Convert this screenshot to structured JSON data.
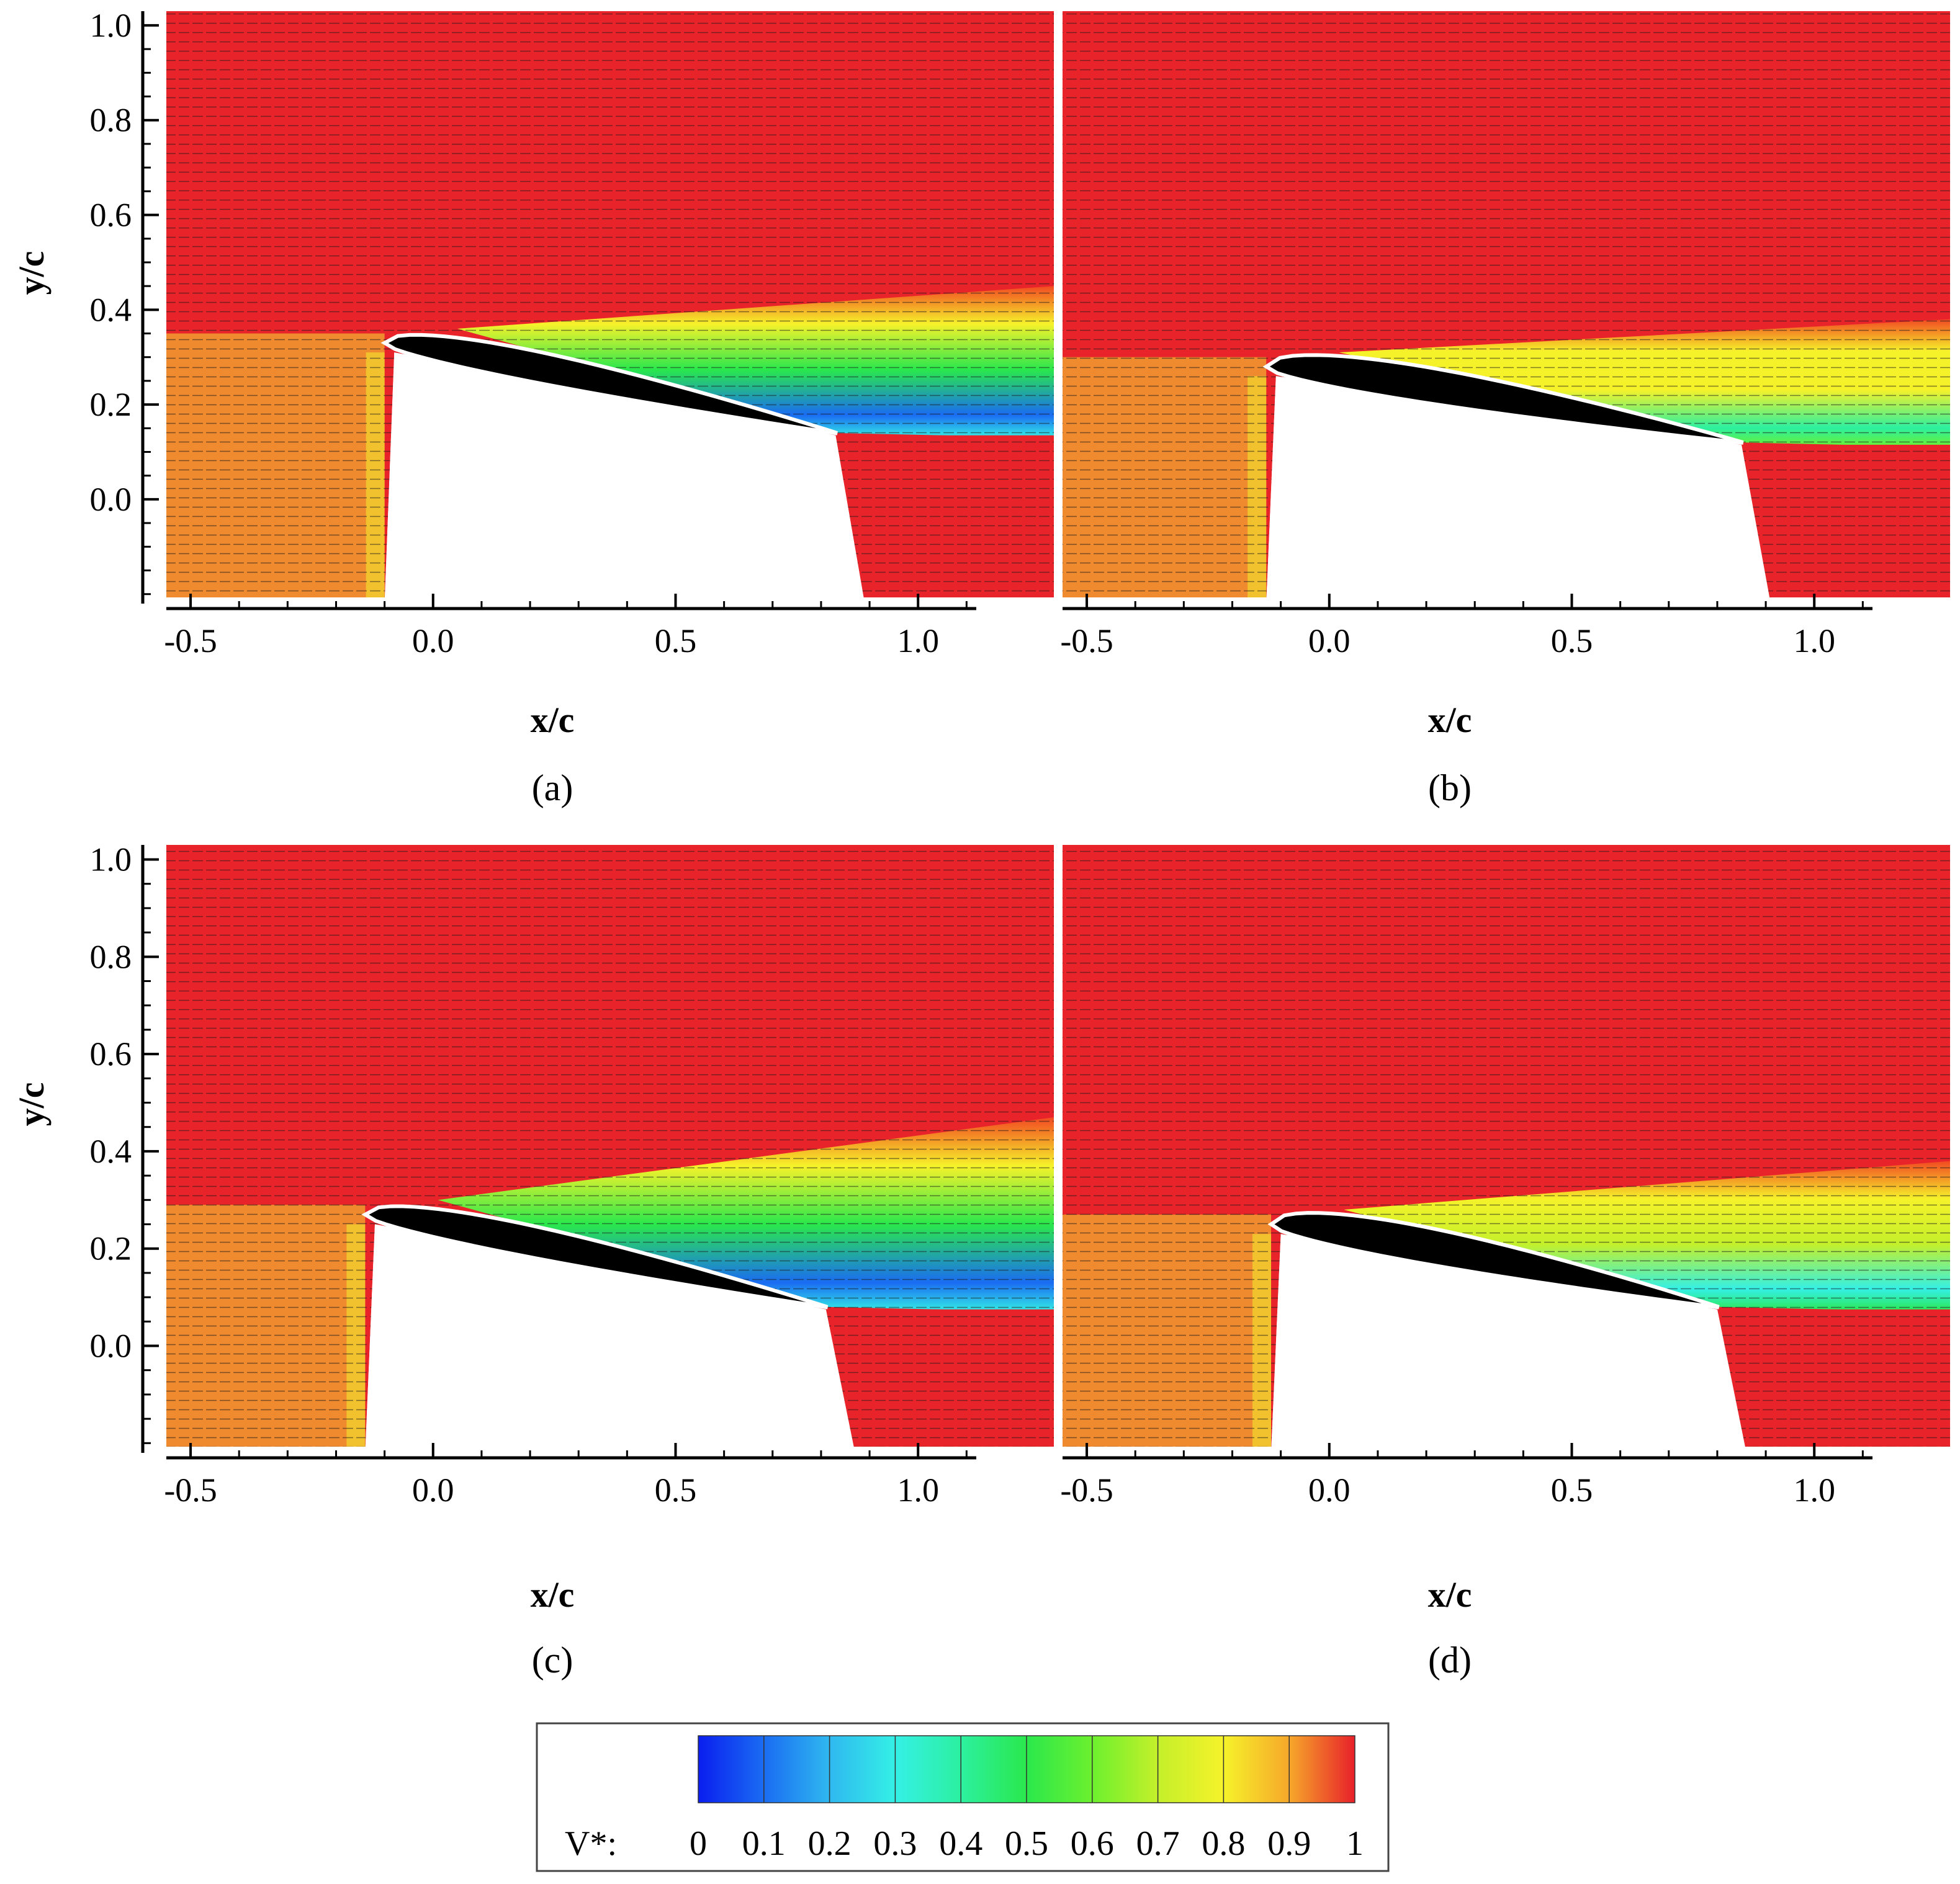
{
  "chart_data": [
    {
      "type": "heatmap",
      "panel_label": "(a)",
      "xlabel": "x/c",
      "ylabel": "y/c",
      "xlim": [
        -0.55,
        1.28
      ],
      "ylim": [
        -0.22,
        1.03
      ],
      "xticks": [
        "-0.5",
        "0.0",
        "0.5",
        "1.0"
      ],
      "yticks": [
        "1.0",
        "0.8",
        "0.6",
        "0.4",
        "0.2",
        "0.0"
      ],
      "airfoil": {
        "leading_edge": [
          -0.1,
          0.33
        ],
        "trailing_edge": [
          0.83,
          0.14
        ],
        "thickness": 0.065
      },
      "wake": {
        "top": 0.45,
        "min_value": 0.1,
        "extent": "strong separation"
      }
    },
    {
      "type": "heatmap",
      "panel_label": "(b)",
      "xlabel": "x/c",
      "ylabel": "",
      "xlim": [
        -0.55,
        1.28
      ],
      "ylim": [
        -0.22,
        1.03
      ],
      "xticks": [
        "-0.5",
        "0.0",
        "0.5",
        "1.0"
      ],
      "yticks": [],
      "airfoil": {
        "leading_edge": [
          -0.13,
          0.28
        ],
        "trailing_edge": [
          0.85,
          0.12
        ],
        "thickness": 0.075
      },
      "wake": {
        "top": 0.38,
        "min_value": 0.4,
        "extent": "moderate"
      }
    },
    {
      "type": "heatmap",
      "panel_label": "(c)",
      "xlabel": "x/c",
      "ylabel": "y/c",
      "xlim": [
        -0.55,
        1.28
      ],
      "ylim": [
        -0.22,
        1.03
      ],
      "xticks": [
        "-0.5",
        "0.0",
        "0.5",
        "1.0"
      ],
      "yticks": [
        "1.0",
        "0.8",
        "0.6",
        "0.4",
        "0.2",
        "0.0"
      ],
      "airfoil": {
        "leading_edge": [
          -0.14,
          0.27
        ],
        "trailing_edge": [
          0.81,
          0.08
        ],
        "thickness": 0.065
      },
      "wake": {
        "top": 0.47,
        "min_value": 0.1,
        "extent": "strong separation"
      }
    },
    {
      "type": "heatmap",
      "panel_label": "(d)",
      "xlabel": "x/c",
      "ylabel": "",
      "xlim": [
        -0.55,
        1.28
      ],
      "ylim": [
        -0.22,
        1.03
      ],
      "xticks": [
        "-0.5",
        "0.0",
        "0.5",
        "1.0"
      ],
      "yticks": [],
      "airfoil": {
        "leading_edge": [
          -0.12,
          0.25
        ],
        "trailing_edge": [
          0.8,
          0.08
        ],
        "thickness": 0.075
      },
      "wake": {
        "top": 0.38,
        "min_value": 0.3,
        "extent": "moderate"
      }
    }
  ],
  "colorbar": {
    "label": "V*:",
    "ticks": [
      "0",
      "0.1",
      "0.2",
      "0.3",
      "0.4",
      "0.5",
      "0.6",
      "0.7",
      "0.8",
      "0.9",
      "1"
    ],
    "range": [
      0,
      1
    ],
    "colors": [
      "#0a1ef0",
      "#1a6cf2",
      "#2fb8f0",
      "#34f0e6",
      "#2cf0a0",
      "#2ae84c",
      "#6cf02e",
      "#c4f02a",
      "#f6f22a",
      "#f6a82a",
      "#f24a22",
      "#e8202a"
    ]
  }
}
